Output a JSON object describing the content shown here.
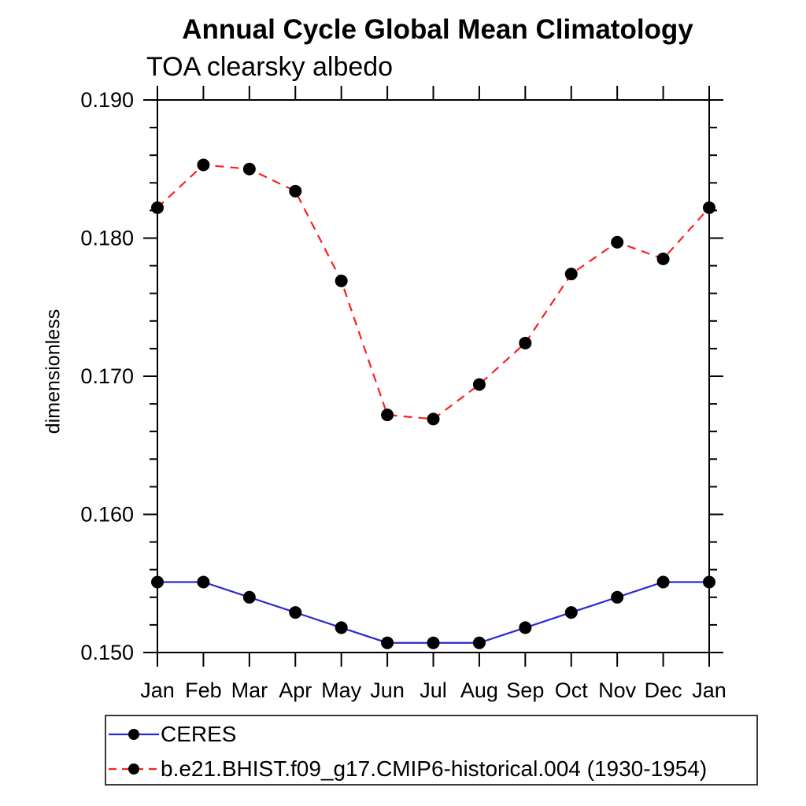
{
  "chart_data": {
    "type": "line",
    "title": "Annual Cycle Global Mean Climatology",
    "subtitle": "TOA clearsky albedo",
    "ylabel": "dimensionless",
    "xlabel": "",
    "categories": [
      "Jan",
      "Feb",
      "Mar",
      "Apr",
      "May",
      "Jun",
      "Jul",
      "Aug",
      "Sep",
      "Oct",
      "Nov",
      "Dec",
      "Jan"
    ],
    "ylim": [
      0.15,
      0.19
    ],
    "y_major_step": 0.01,
    "y_minor_step": 0.002,
    "y_tick_labels": [
      "0.150",
      "0.160",
      "0.170",
      "0.180",
      "0.190"
    ],
    "grid": false,
    "legend_position": "bottom-left-box",
    "axis_color": "#000000",
    "marker_color": "#000000",
    "series": [
      {
        "name": "CERES",
        "color": "#2a2ad2",
        "style": "solid",
        "marker": "circle",
        "values": [
          0.1551,
          0.1551,
          0.154,
          0.1529,
          0.1518,
          0.1507,
          0.1507,
          0.1507,
          0.1518,
          0.1529,
          0.154,
          0.1551,
          0.1551
        ]
      },
      {
        "name": "b.e21.BHIST.f09_g17.CMIP6-historical.004 (1930-1954)",
        "color": "#fa2020",
        "style": "dashed",
        "marker": "circle",
        "values": [
          0.1822,
          0.1853,
          0.185,
          0.1834,
          0.1769,
          0.1672,
          0.1669,
          0.1694,
          0.1724,
          0.1774,
          0.1797,
          0.1785,
          0.1822
        ]
      }
    ]
  }
}
